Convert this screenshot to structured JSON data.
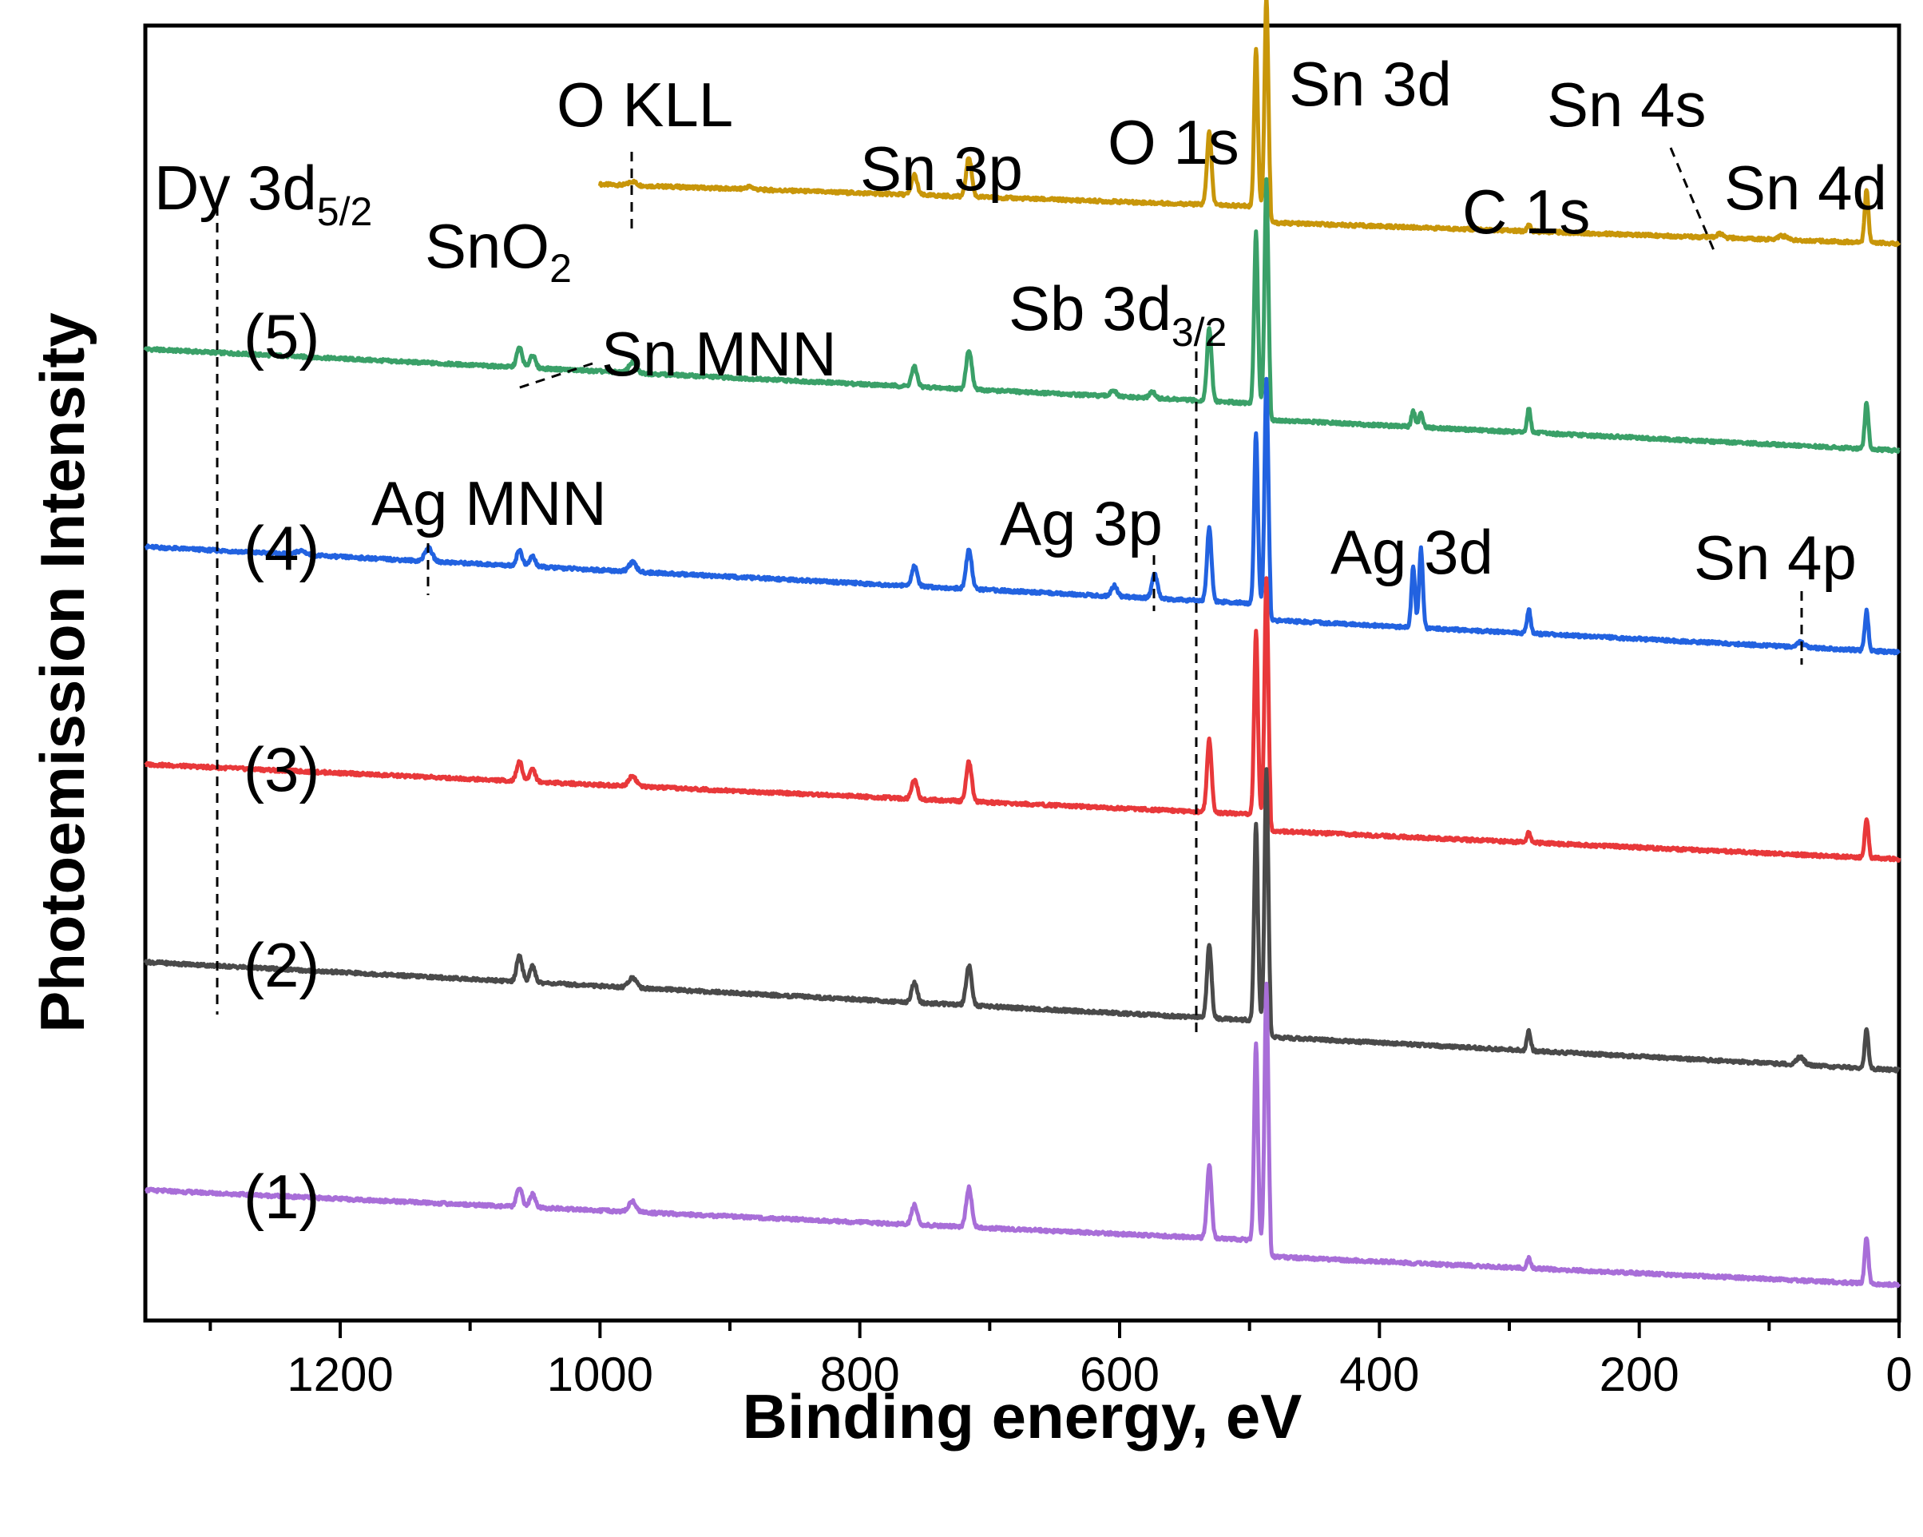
{
  "chart_data": {
    "type": "line",
    "title": "",
    "xlabel": "Binding energy, eV",
    "ylabel": "Photoemission Intensity",
    "xlim": [
      1350,
      0
    ],
    "x_reversed": true,
    "x_ticks": [
      1200,
      1000,
      800,
      600,
      400,
      200,
      0
    ],
    "x_tick_labels": [
      "1200",
      "1000",
      "800",
      "600",
      "400",
      "200",
      "0"
    ],
    "y_ticks_shown": false,
    "grid": false,
    "units_note": "Intensity in arbitrary units; curves vertically offset (stacked)",
    "series": [
      {
        "name": "SnO2",
        "label": "SnO",
        "label_sub": "2",
        "color": "#c8960a",
        "x_range": [
          1000,
          0
        ],
        "baseline_start": 8.45,
        "baseline_end": 8.12,
        "peaks": [
          {
            "x": 975,
            "h": 0.03,
            "w": 4
          },
          {
            "x": 885,
            "h": 0.02,
            "w": 4
          },
          {
            "x": 758,
            "h": 0.15,
            "w": 3
          },
          {
            "x": 716,
            "h": 0.3,
            "w": 3
          },
          {
            "x": 531,
            "h": 0.55,
            "w": 2.5
          },
          {
            "x": 495,
            "h": 1.2,
            "w": 2
          },
          {
            "x": 487,
            "h": 1.6,
            "w": 2
          },
          {
            "x": 285,
            "h": 0.05,
            "w": 2
          },
          {
            "x": 138,
            "h": 0.03,
            "w": 3
          },
          {
            "x": 90,
            "h": 0.03,
            "w": 5
          },
          {
            "x": 25,
            "h": 0.4,
            "w": 2
          }
        ]
      },
      {
        "name": "(5)",
        "label": "(5)",
        "color": "#3aa068",
        "x_range": [
          1350,
          0
        ],
        "baseline_start": 7.2,
        "baseline_end": 6.55,
        "peaks": [
          {
            "x": 1062,
            "h": 0.15,
            "w": 3
          },
          {
            "x": 1052,
            "h": 0.1,
            "w": 3
          },
          {
            "x": 975,
            "h": 0.08,
            "w": 4
          },
          {
            "x": 758,
            "h": 0.15,
            "w": 3
          },
          {
            "x": 716,
            "h": 0.3,
            "w": 3
          },
          {
            "x": 605,
            "h": 0.05,
            "w": 3
          },
          {
            "x": 575,
            "h": 0.05,
            "w": 3
          },
          {
            "x": 531,
            "h": 0.55,
            "w": 2.5
          },
          {
            "x": 495,
            "h": 1.3,
            "w": 2
          },
          {
            "x": 487,
            "h": 1.7,
            "w": 2
          },
          {
            "x": 374,
            "h": 0.12,
            "w": 2
          },
          {
            "x": 368,
            "h": 0.12,
            "w": 2
          },
          {
            "x": 285,
            "h": 0.18,
            "w": 2
          },
          {
            "x": 25,
            "h": 0.35,
            "w": 2
          }
        ]
      },
      {
        "name": "(4)",
        "label": "(4)",
        "color": "#2262e0",
        "x_range": [
          1350,
          0
        ],
        "baseline_start": 5.7,
        "baseline_end": 5.02,
        "peaks": [
          {
            "x": 1230,
            "h": 0.03,
            "w": 5
          },
          {
            "x": 1132,
            "h": 0.1,
            "w": 4
          },
          {
            "x": 1062,
            "h": 0.12,
            "w": 3
          },
          {
            "x": 1052,
            "h": 0.08,
            "w": 3
          },
          {
            "x": 975,
            "h": 0.07,
            "w": 4
          },
          {
            "x": 758,
            "h": 0.15,
            "w": 3
          },
          {
            "x": 716,
            "h": 0.3,
            "w": 3
          },
          {
            "x": 604,
            "h": 0.08,
            "w": 3
          },
          {
            "x": 573,
            "h": 0.18,
            "w": 3
          },
          {
            "x": 531,
            "h": 0.55,
            "w": 2.5
          },
          {
            "x": 495,
            "h": 1.3,
            "w": 2
          },
          {
            "x": 487,
            "h": 1.7,
            "w": 2
          },
          {
            "x": 374,
            "h": 0.45,
            "w": 2
          },
          {
            "x": 368,
            "h": 0.6,
            "w": 2
          },
          {
            "x": 285,
            "h": 0.18,
            "w": 2
          },
          {
            "x": 76,
            "h": 0.04,
            "w": 4
          },
          {
            "x": 25,
            "h": 0.3,
            "w": 2
          }
        ]
      },
      {
        "name": "(3)",
        "label": "(3)",
        "color": "#e8383a",
        "x_range": [
          1350,
          0
        ],
        "baseline_start": 4.05,
        "baseline_end": 3.45,
        "peaks": [
          {
            "x": 1062,
            "h": 0.15,
            "w": 3
          },
          {
            "x": 1052,
            "h": 0.1,
            "w": 3
          },
          {
            "x": 975,
            "h": 0.08,
            "w": 4
          },
          {
            "x": 758,
            "h": 0.15,
            "w": 3
          },
          {
            "x": 716,
            "h": 0.3,
            "w": 3
          },
          {
            "x": 531,
            "h": 0.55,
            "w": 2.5
          },
          {
            "x": 495,
            "h": 1.4,
            "w": 2
          },
          {
            "x": 487,
            "h": 1.8,
            "w": 2
          },
          {
            "x": 285,
            "h": 0.08,
            "w": 2
          },
          {
            "x": 25,
            "h": 0.3,
            "w": 2
          }
        ]
      },
      {
        "name": "(2)",
        "label": "(2)",
        "color": "#4a4a4a",
        "x_range": [
          1350,
          0
        ],
        "baseline_start": 2.55,
        "baseline_end": 1.85,
        "peaks": [
          {
            "x": 1062,
            "h": 0.2,
            "w": 3
          },
          {
            "x": 1052,
            "h": 0.12,
            "w": 3
          },
          {
            "x": 975,
            "h": 0.08,
            "w": 4
          },
          {
            "x": 758,
            "h": 0.15,
            "w": 3
          },
          {
            "x": 716,
            "h": 0.3,
            "w": 3
          },
          {
            "x": 531,
            "h": 0.55,
            "w": 2.5
          },
          {
            "x": 495,
            "h": 1.5,
            "w": 2
          },
          {
            "x": 487,
            "h": 1.9,
            "w": 2
          },
          {
            "x": 285,
            "h": 0.15,
            "w": 2
          },
          {
            "x": 76,
            "h": 0.06,
            "w": 4
          },
          {
            "x": 25,
            "h": 0.3,
            "w": 2
          }
        ]
      },
      {
        "name": "(1)",
        "label": "(1)",
        "color": "#a86ed8",
        "x_range": [
          1350,
          0
        ],
        "baseline_start": 0.82,
        "baseline_end": 0.22,
        "peaks": [
          {
            "x": 1062,
            "h": 0.15,
            "w": 3
          },
          {
            "x": 1052,
            "h": 0.1,
            "w": 3
          },
          {
            "x": 975,
            "h": 0.08,
            "w": 4
          },
          {
            "x": 758,
            "h": 0.15,
            "w": 3
          },
          {
            "x": 716,
            "h": 0.3,
            "w": 3
          },
          {
            "x": 531,
            "h": 0.55,
            "w": 2.5
          },
          {
            "x": 495,
            "h": 1.5,
            "w": 2
          },
          {
            "x": 487,
            "h": 1.95,
            "w": 2
          },
          {
            "x": 285,
            "h": 0.08,
            "w": 2
          },
          {
            "x": 25,
            "h": 0.35,
            "w": 2
          }
        ]
      }
    ],
    "annotations": [
      {
        "name": "o-kll",
        "text": "O KLL",
        "x": 975
      },
      {
        "name": "sn-3p",
        "text": "Sn 3p",
        "x": 735
      },
      {
        "name": "o-1s",
        "text": "O 1s",
        "x": 531
      },
      {
        "name": "sn-3d",
        "text": "Sn 3d",
        "x": 487
      },
      {
        "name": "sn-4s",
        "text": "Sn 4s",
        "x": 138
      },
      {
        "name": "c-1s",
        "text": "C 1s",
        "x": 285
      },
      {
        "name": "sn-4d",
        "text": "Sn 4d",
        "x": 25
      },
      {
        "name": "dy-3d52",
        "text": "Dy 3d",
        "sub": "5/2",
        "x": 1295
      },
      {
        "name": "sb-3d32",
        "text": "Sb 3d",
        "sub": "3/2",
        "x": 540
      },
      {
        "name": "sn-mnn",
        "text": "Sn MNN",
        "x": 1062
      },
      {
        "name": "ag-mnn",
        "text": "Ag MNN",
        "x": 1132
      },
      {
        "name": "ag-3p",
        "text": "Ag 3p",
        "x": 573
      },
      {
        "name": "ag-3d",
        "text": "Ag 3d",
        "x": 371
      },
      {
        "name": "sn-4p",
        "text": "Sn 4p",
        "x": 76
      }
    ]
  }
}
